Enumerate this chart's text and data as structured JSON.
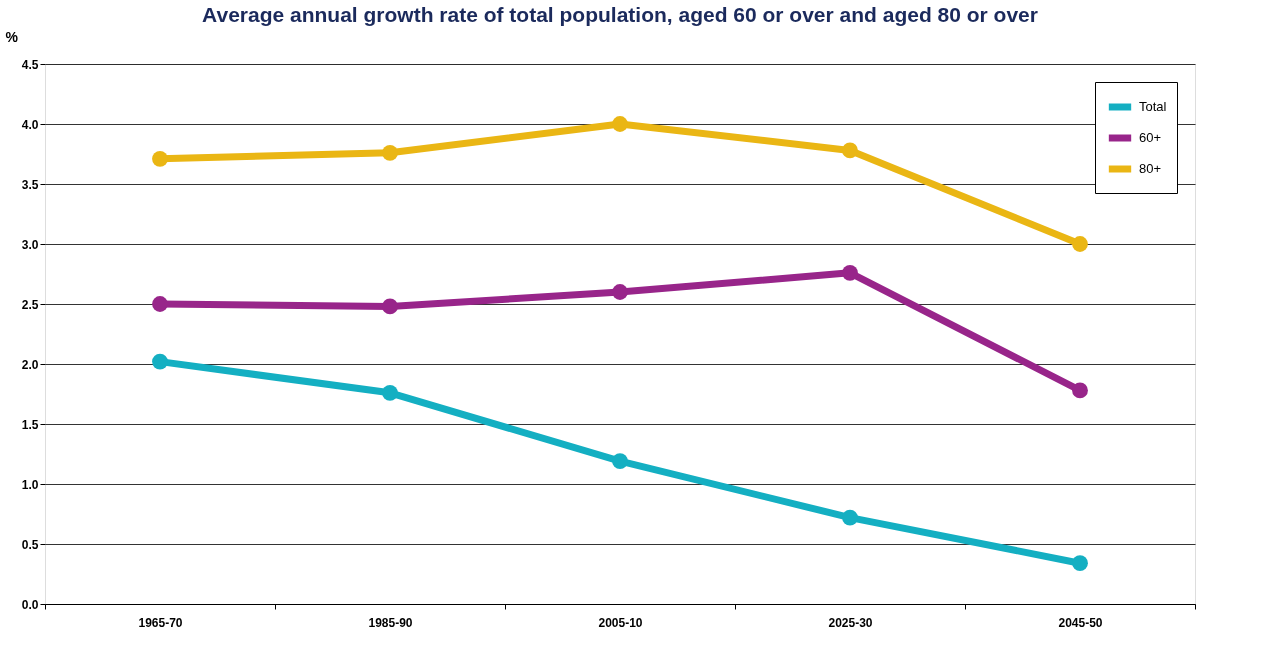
{
  "chart_data": {
    "type": "line",
    "title": "Average annual growth rate of total population, aged 60 or over and aged 80 or over",
    "ylabel": "%",
    "categories": [
      "1965-70",
      "1985-90",
      "2005-10",
      "2025-30",
      "2045-50"
    ],
    "series": [
      {
        "name": "Total",
        "color": "#14afc2",
        "values": [
          2.02,
          1.76,
          1.19,
          0.72,
          0.34
        ]
      },
      {
        "name": "60+",
        "color": "#98258a",
        "values": [
          2.5,
          2.48,
          2.6,
          2.76,
          1.78
        ]
      },
      {
        "name": "80+",
        "color": "#eab614",
        "values": [
          3.71,
          3.76,
          4.0,
          3.78,
          3.0
        ]
      }
    ],
    "ylim": [
      0,
      4.5
    ],
    "yticks": [
      {
        "value": 0,
        "label": "0.0"
      },
      0.5,
      {
        "value": 1,
        "label": "1.0"
      },
      1.5,
      {
        "value": 2,
        "label": "2.0"
      },
      2.5,
      {
        "value": 3,
        "label": "3.0"
      },
      3.5,
      {
        "value": 4,
        "label": "4.0"
      },
      4.5
    ],
    "grid": "y",
    "legend": "top right",
    "marker": "circle",
    "line_style": "solid"
  }
}
